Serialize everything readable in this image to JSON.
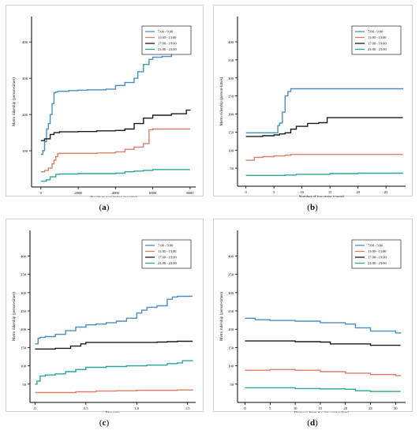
{
  "chart_data": [
    {
      "type": "line",
      "caption": "a",
      "xlabel": "Resident population (people)",
      "ylabel": "Metro ridership (person-times)",
      "xlim": [
        -500,
        8300
      ],
      "ylim": [
        0,
        470
      ],
      "xticks": [
        0,
        2000,
        4000,
        6000,
        8000
      ],
      "xtick_labels": [
        "0",
        "2000",
        "4000",
        "6000",
        "8000"
      ],
      "yticks": [
        100,
        200,
        300,
        400
      ],
      "ytick_labels": [
        "100",
        "200",
        "300",
        "400"
      ],
      "legend_position": "top-right",
      "grid": false,
      "series": [
        {
          "name": "7:00 - 9:00",
          "color": "#4a8ec2",
          "x": [
            0,
            100,
            200,
            300,
            400,
            500,
            600,
            700,
            800,
            900,
            1000,
            1500,
            2000,
            2500,
            3000,
            3500,
            4000,
            4500,
            5000,
            5200,
            5500,
            5800,
            6000,
            6500,
            7000,
            7500,
            8000
          ],
          "y": [
            90,
            100,
            125,
            160,
            175,
            200,
            230,
            260,
            262,
            264,
            264,
            266,
            267,
            268,
            268,
            270,
            280,
            288,
            300,
            318,
            338,
            352,
            358,
            360,
            368,
            370,
            372
          ]
        },
        {
          "name": "11:00 - 13:00",
          "color": "#d9806b",
          "x": [
            0,
            200,
            400,
            600,
            700,
            800,
            900,
            1000,
            2000,
            3000,
            4000,
            4500,
            5000,
            5500,
            5800,
            6000,
            7000,
            8000
          ],
          "y": [
            42,
            46,
            52,
            64,
            74,
            84,
            92,
            93,
            93,
            94,
            97,
            104,
            110,
            120,
            158,
            160,
            160,
            160
          ]
        },
        {
          "name": "17:00 - 19:00",
          "color": "#1a1a1a",
          "x": [
            0,
            200,
            500,
            700,
            1000,
            2000,
            3000,
            4000,
            4500,
            5000,
            5500,
            6000,
            7000,
            7800,
            8000
          ],
          "y": [
            128,
            133,
            145,
            150,
            152,
            153,
            155,
            156,
            160,
            175,
            190,
            198,
            202,
            212,
            214
          ]
        },
        {
          "name": "21:00 - 23:00",
          "color": "#2aa69a",
          "x": [
            0,
            300,
            500,
            800,
            1000,
            2000,
            3000,
            4000,
            4500,
            5000,
            5500,
            6000,
            7000,
            8000
          ],
          "y": [
            16,
            20,
            28,
            35,
            36,
            37,
            37,
            38,
            42,
            44,
            46,
            48,
            48,
            48
          ]
        }
      ]
    },
    {
      "type": "line",
      "caption": "b",
      "xlabel": "Number of bus stops (count)",
      "ylabel": "Metro ridership (person-times)",
      "xlim": [
        -1.5,
        28.5
      ],
      "ylim": [
        0,
        470
      ],
      "xticks": [
        0,
        5,
        10,
        15,
        20,
        25
      ],
      "xtick_labels": [
        "0",
        "5",
        "10",
        "15",
        "20",
        "25"
      ],
      "yticks": [
        50,
        100,
        150,
        200,
        250,
        300,
        350,
        400
      ],
      "ytick_labels": [
        "50",
        "100",
        "150",
        "200",
        "250",
        "300",
        "350",
        "400"
      ],
      "legend_position": "top-right",
      "grid": false,
      "series": [
        {
          "name": "7:00 - 9:00",
          "color": "#4a8ec2",
          "x": [
            0,
            5,
            5.7,
            6,
            6.5,
            7,
            7.5,
            8,
            10,
            15,
            20,
            28
          ],
          "y": [
            148,
            148,
            168,
            175,
            205,
            250,
            262,
            270,
            270,
            270,
            270,
            272
          ]
        },
        {
          "name": "11:00 - 13:00",
          "color": "#d9806b",
          "x": [
            0,
            0.8,
            1.5,
            3,
            5,
            7,
            8,
            10,
            15,
            20,
            28
          ],
          "y": [
            72,
            72,
            80,
            82,
            84,
            86,
            88,
            88,
            88,
            88,
            88
          ]
        },
        {
          "name": "17:00 - 19:00",
          "color": "#1a1a1a",
          "x": [
            0,
            3,
            5,
            6,
            7,
            8,
            9,
            11,
            13,
            14.5,
            15,
            20,
            28
          ],
          "y": [
            138,
            140,
            142,
            145,
            148,
            158,
            166,
            174,
            176,
            190,
            190,
            190,
            190
          ]
        },
        {
          "name": "21:00 - 23:00",
          "color": "#2aa69a",
          "x": [
            0,
            5,
            7,
            9,
            10,
            15,
            20,
            28
          ],
          "y": [
            30,
            30,
            31,
            33,
            33,
            35,
            36,
            37
          ]
        }
      ]
    },
    {
      "type": "line",
      "caption": "c",
      "xlabel": "Plot ratio",
      "ylabel": "Metro ridership (person-times)",
      "xlim": [
        -0.05,
        1.58
      ],
      "ylim": [
        0,
        470
      ],
      "xticks": [
        0,
        0.5,
        1.0,
        1.5
      ],
      "xtick_labels": [
        "0",
        "0.5",
        "1.0",
        "1.5"
      ],
      "yticks": [
        50,
        100,
        150,
        200,
        250,
        300,
        350,
        400
      ],
      "ytick_labels": [
        "50",
        "100",
        "150",
        "200",
        "250",
        "300",
        "350",
        "400"
      ],
      "legend_position": "top-right",
      "grid": false,
      "series": [
        {
          "name": "7:00 - 9:00",
          "color": "#4a8ec2",
          "x": [
            0,
            0.03,
            0.05,
            0.1,
            0.2,
            0.3,
            0.4,
            0.5,
            0.6,
            0.7,
            0.8,
            0.9,
            1.0,
            1.05,
            1.1,
            1.2,
            1.3,
            1.35,
            1.4,
            1.5,
            1.55
          ],
          "y": [
            160,
            175,
            178,
            180,
            186,
            196,
            206,
            212,
            214,
            218,
            222,
            230,
            244,
            252,
            260,
            264,
            282,
            288,
            290,
            290,
            290
          ]
        },
        {
          "name": "11:00 - 13:00",
          "color": "#d9806b",
          "x": [
            0,
            0.2,
            0.4,
            0.6,
            0.8,
            1.0,
            1.2,
            1.4,
            1.55
          ],
          "y": [
            27,
            27,
            29,
            31,
            32,
            33,
            33,
            34,
            35
          ]
        },
        {
          "name": "17:00 - 19:00",
          "color": "#1a1a1a",
          "x": [
            0,
            0.2,
            0.35,
            0.45,
            0.5,
            0.7,
            1.0,
            1.2,
            1.3,
            1.4,
            1.55
          ],
          "y": [
            146,
            148,
            154,
            160,
            164,
            164,
            164,
            165,
            166,
            167,
            167
          ]
        },
        {
          "name": "21:00 - 23:00",
          "color": "#2aa69a",
          "x": [
            0,
            0.02,
            0.05,
            0.1,
            0.2,
            0.3,
            0.4,
            0.5,
            0.7,
            0.9,
            1.1,
            1.3,
            1.4,
            1.45,
            1.55
          ],
          "y": [
            50,
            58,
            72,
            75,
            78,
            84,
            90,
            96,
            98,
            100,
            102,
            106,
            108,
            114,
            115
          ]
        }
      ]
    },
    {
      "type": "line",
      "caption": "d",
      "xlabel": "Distance from the city center (km)",
      "ylabel": "Metro ridership (person-times)",
      "xlim": [
        -1.5,
        32
      ],
      "ylim": [
        0,
        470
      ],
      "xticks": [
        0,
        5,
        10,
        15,
        20,
        25,
        30
      ],
      "xtick_labels": [
        "0",
        "5",
        "10",
        "15",
        "20",
        "25",
        "30"
      ],
      "yticks": [
        50,
        100,
        150,
        200,
        250,
        300,
        350,
        400
      ],
      "ytick_labels": [
        "50",
        "100",
        "150",
        "200",
        "250",
        "300",
        "350",
        "400"
      ],
      "legend_position": "top-right",
      "grid": false,
      "series": [
        {
          "name": "7:00 - 9:00",
          "color": "#4a8ec2",
          "x": [
            0,
            2,
            5,
            10,
            15,
            20,
            22,
            25,
            30,
            31
          ],
          "y": [
            230,
            226,
            224,
            222,
            218,
            214,
            204,
            195,
            190,
            188
          ]
        },
        {
          "name": "11:00 - 13:00",
          "color": "#d9806b",
          "x": [
            0,
            5,
            10,
            15,
            20,
            25,
            30,
            31
          ],
          "y": [
            88,
            90,
            88,
            84,
            80,
            76,
            73,
            72
          ]
        },
        {
          "name": "17:00 - 19:00",
          "color": "#1a1a1a",
          "x": [
            0,
            5,
            10,
            15,
            17,
            20,
            25,
            30,
            31
          ],
          "y": [
            168,
            168,
            166,
            165,
            160,
            160,
            156,
            156,
            156
          ]
        },
        {
          "name": "21:00 - 23:00",
          "color": "#2aa69a",
          "x": [
            0,
            5,
            10,
            15,
            20,
            22,
            25,
            30,
            31
          ],
          "y": [
            40,
            40,
            38,
            37,
            36,
            32,
            30,
            30,
            30
          ]
        }
      ]
    }
  ]
}
